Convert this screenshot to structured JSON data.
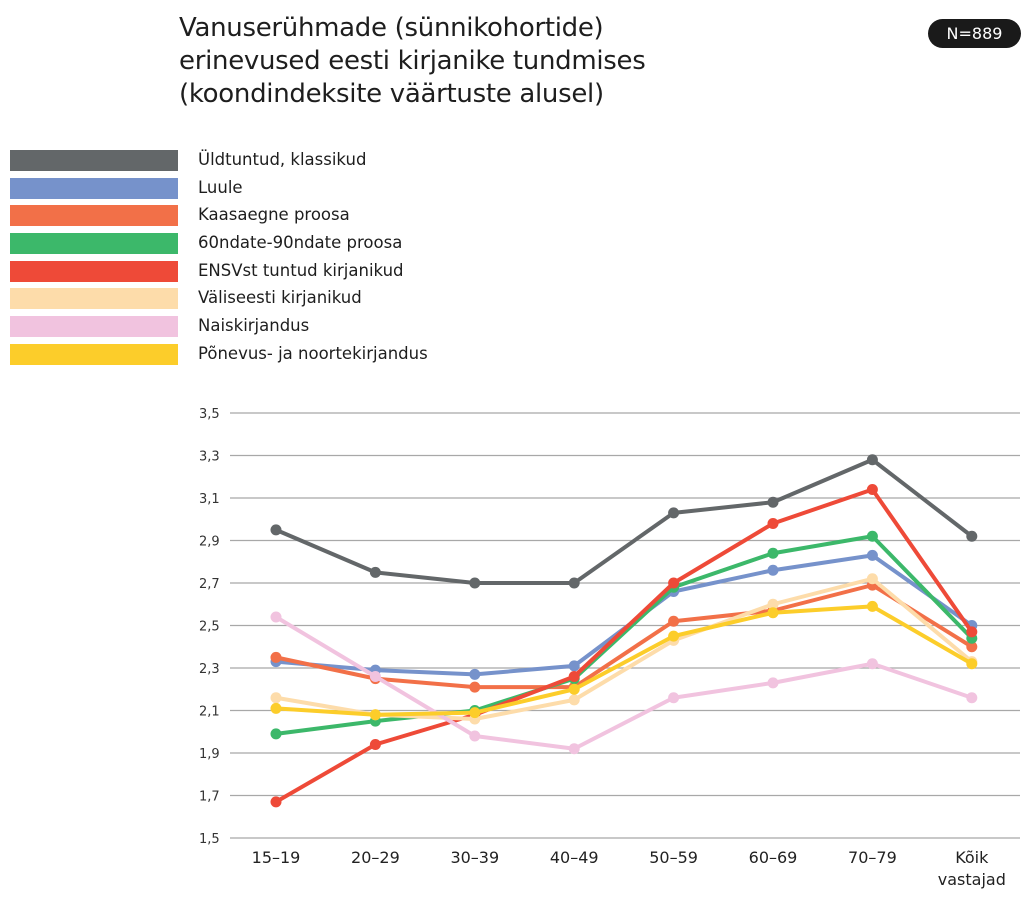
{
  "title_lines": [
    "Vanuserühmade (sünnikohortide)",
    "erinevused eesti kirjanike tundmises",
    "(koondindeksite väärtuste alusel)"
  ],
  "badge": "N=889",
  "chart_data": {
    "type": "line",
    "title": "Vanuserühmade (sünnikohortide) erinevused eesti kirjanike tundmises (koondindeksite väärtuste alusel)",
    "categories": [
      "15–19",
      "20–29",
      "30–39",
      "40–49",
      "50–59",
      "60–69",
      "70–79",
      "Kõik vastajad"
    ],
    "category_lines": [
      [
        "15–19"
      ],
      [
        "20–29"
      ],
      [
        "30–39"
      ],
      [
        "40–49"
      ],
      [
        "50–59"
      ],
      [
        "60–69"
      ],
      [
        "70–79"
      ],
      [
        "Kõik",
        "vastajad"
      ]
    ],
    "ylim": [
      1.5,
      3.5
    ],
    "yticks": [
      "3,5",
      "3,3",
      "3,1",
      "2,9",
      "2,7",
      "2,5",
      "2,3",
      "2,1",
      "1,9",
      "1,7",
      "1,5"
    ],
    "ytick_values": [
      3.5,
      3.3,
      3.1,
      2.9,
      2.7,
      2.5,
      2.3,
      2.1,
      1.9,
      1.7,
      1.5
    ],
    "grid": true,
    "legend_position": "top-left",
    "series": [
      {
        "name": "Üldtuntud, klassikud",
        "color": "#636769",
        "values": [
          2.95,
          2.75,
          2.7,
          2.7,
          3.03,
          3.08,
          3.28,
          2.92
        ]
      },
      {
        "name": "Luule",
        "color": "#7692cb",
        "values": [
          2.33,
          2.29,
          2.27,
          2.31,
          2.66,
          2.76,
          2.83,
          2.5
        ]
      },
      {
        "name": "Kaasaegne proosa",
        "color": "#f27048",
        "values": [
          2.35,
          2.25,
          2.21,
          2.21,
          2.52,
          2.57,
          2.69,
          2.4
        ]
      },
      {
        "name": "60ndate-90ndate proosa",
        "color": "#3cb86a",
        "values": [
          1.99,
          2.05,
          2.1,
          2.25,
          2.68,
          2.84,
          2.92,
          2.44
        ]
      },
      {
        "name": "ENSVst tuntud kirjanikud",
        "color": "#ee4a38",
        "values": [
          1.67,
          1.94,
          2.08,
          2.26,
          2.7,
          2.98,
          3.14,
          2.47
        ]
      },
      {
        "name": "Väliseesti kirjanikud",
        "color": "#fddcaa",
        "values": [
          2.16,
          2.08,
          2.06,
          2.15,
          2.43,
          2.6,
          2.72,
          2.33
        ]
      },
      {
        "name": "Naiskirjandus",
        "color": "#f1c3df",
        "values": [
          2.54,
          2.26,
          1.98,
          1.92,
          2.16,
          2.23,
          2.32,
          2.16
        ]
      },
      {
        "name": "Põnevus- ja noortekirjandus",
        "color": "#fccd2a",
        "values": [
          2.11,
          2.08,
          2.09,
          2.2,
          2.45,
          2.56,
          2.59,
          2.32
        ]
      }
    ]
  }
}
